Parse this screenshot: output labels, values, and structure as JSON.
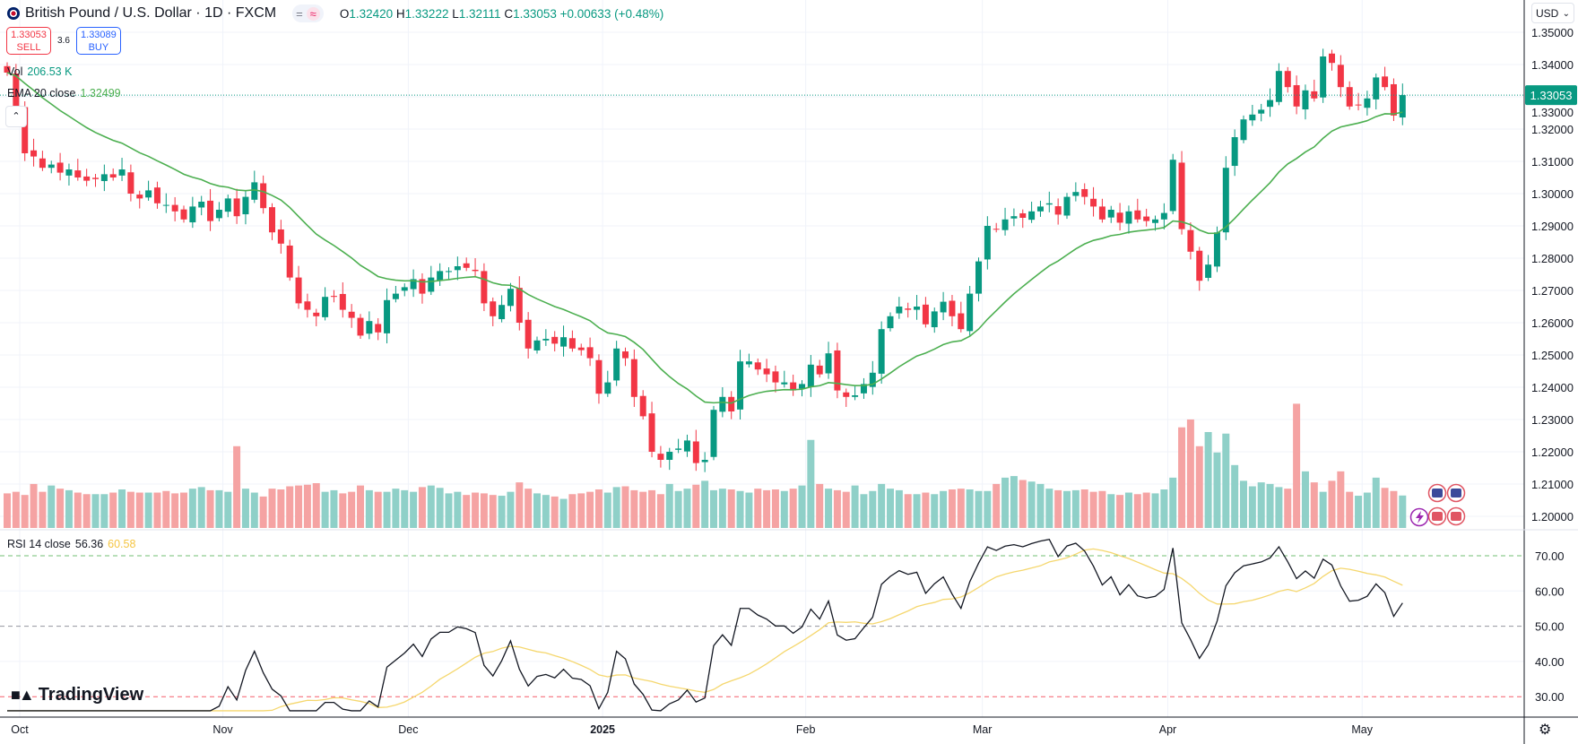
{
  "header": {
    "title": "British Pound / U.S. Dollar · 1D · FXCM",
    "pill_left": "=",
    "pill_right": "≈",
    "ohlc": {
      "o_label": "O",
      "o": "1.32420",
      "h_label": "H",
      "h": "1.33222",
      "l_label": "L",
      "l": "1.32111",
      "c_label": "C",
      "c": "1.33053",
      "change": "+0.00633 (+0.48%)"
    }
  },
  "trade": {
    "sell_price": "1.33053",
    "sell_label": "SELL",
    "spread": "3.6",
    "buy_price": "1.33089",
    "buy_label": "BUY"
  },
  "legend": {
    "vol_label": "Vol",
    "vol_value": "206.53 K",
    "ema_label": "EMA 20 close",
    "ema_value": "1.32499",
    "rsi_label": "RSI 14 close",
    "rsi_value": "56.36",
    "rsi_ma_value": "60.58"
  },
  "currency_selector": "USD",
  "current_price_tag": "1.33053",
  "brand": "TradingView",
  "colors": {
    "up": "#089981",
    "down": "#f23645",
    "ema": "#4caf50",
    "rsi": "#131722",
    "rsi_ma": "#f5d76e",
    "vol_up": "#8fd0c8",
    "vol_down": "#f5a3a3"
  },
  "chart_data": {
    "type": "candlestick",
    "title": "British Pound / U.S. Dollar · 1D · FXCM",
    "ylim": [
      1.195,
      1.355
    ],
    "y_ticks": [
      "1.35000",
      "1.34000",
      "1.33000",
      "1.32000",
      "1.31000",
      "1.30000",
      "1.29000",
      "1.28000",
      "1.27000",
      "1.26000",
      "1.25000",
      "1.24000",
      "1.23000",
      "1.22000",
      "1.21000",
      "1.20000"
    ],
    "rsi_ticks": [
      "70.00",
      "60.00",
      "50.00",
      "40.00",
      "30.00"
    ],
    "rsi_bands": [
      70,
      50,
      30
    ],
    "x_labels": [
      {
        "label": "Oct",
        "index": 0
      },
      {
        "label": "Nov",
        "index": 23
      },
      {
        "label": "Dec",
        "index": 44
      },
      {
        "label": "2025",
        "index": 66
      },
      {
        "label": "Feb",
        "index": 89
      },
      {
        "label": "Mar",
        "index": 109
      },
      {
        "label": "Apr",
        "index": 130
      },
      {
        "label": "May",
        "index": 152
      }
    ],
    "close": [
      1.3375,
      1.3265,
      1.3125,
      1.3115,
      1.308,
      1.309,
      1.3065,
      1.3075,
      1.305,
      1.304,
      1.3045,
      1.306,
      1.305,
      1.3075,
      1.3,
      1.2985,
      1.301,
      1.297,
      1.2965,
      1.2945,
      1.292,
      1.296,
      1.2975,
      1.2915,
      1.295,
      1.2985,
      1.293,
      1.299,
      1.3035,
      1.2955,
      1.288,
      1.2845,
      1.274,
      1.266,
      1.264,
      1.262,
      1.268,
      1.268,
      1.264,
      1.2615,
      1.256,
      1.2605,
      1.257,
      1.267,
      1.269,
      1.271,
      1.2735,
      1.269,
      1.274,
      1.276,
      1.276,
      1.2775,
      1.277,
      1.276,
      1.266,
      1.262,
      1.2655,
      1.2705,
      1.26,
      1.252,
      1.2545,
      1.255,
      1.2535,
      1.2555,
      1.252,
      1.2515,
      1.249,
      1.238,
      1.2415,
      1.252,
      1.249,
      1.237,
      1.231,
      1.22,
      1.2175,
      1.22,
      1.221,
      1.2235,
      1.2165,
      1.2175,
      1.233,
      1.237,
      1.2325,
      1.248,
      1.248,
      1.2455,
      1.244,
      1.2415,
      1.2415,
      1.239,
      1.241,
      1.247,
      1.244,
      1.2505,
      1.239,
      1.237,
      1.2375,
      1.241,
      1.2445,
      1.258,
      1.262,
      1.265,
      1.264,
      1.265,
      1.2595,
      1.2635,
      1.2665,
      1.262,
      1.258,
      1.269,
      1.279,
      1.29,
      1.289,
      1.292,
      1.293,
      1.2925,
      1.2945,
      1.296,
      1.297,
      1.2935,
      1.299,
      1.3005,
      1.299,
      1.296,
      1.292,
      1.295,
      1.291,
      1.2945,
      1.292,
      1.2915,
      1.292,
      1.294,
      1.3105,
      1.289,
      1.282,
      1.273,
      1.278,
      1.288,
      1.308,
      1.3175,
      1.323,
      1.3245,
      1.326,
      1.329,
      1.338,
      1.333,
      1.327,
      1.332,
      1.3295,
      1.3425,
      1.3405,
      1.333,
      1.327,
      1.3275,
      1.3295,
      1.336,
      1.333,
      1.3242,
      1.33053
    ],
    "volume_k": [
      220,
      230,
      210,
      280,
      230,
      270,
      250,
      240,
      225,
      215,
      215,
      215,
      225,
      245,
      230,
      225,
      225,
      225,
      235,
      220,
      225,
      250,
      260,
      240,
      240,
      230,
      520,
      250,
      225,
      200,
      250,
      245,
      265,
      270,
      275,
      285,
      230,
      240,
      220,
      230,
      270,
      240,
      230,
      230,
      250,
      240,
      230,
      260,
      270,
      255,
      220,
      230,
      210,
      225,
      220,
      210,
      205,
      230,
      290,
      250,
      220,
      210,
      200,
      185,
      215,
      220,
      230,
      245,
      225,
      260,
      265,
      240,
      230,
      240,
      215,
      280,
      235,
      250,
      275,
      300,
      240,
      250,
      245,
      235,
      225,
      250,
      240,
      245,
      235,
      250,
      270,
      560,
      280,
      250,
      240,
      230,
      270,
      215,
      235,
      280,
      250,
      240,
      215,
      215,
      225,
      215,
      235,
      245,
      250,
      245,
      235,
      235,
      280,
      320,
      330,
      305,
      295,
      280,
      250,
      240,
      235,
      240,
      245,
      230,
      235,
      215,
      210,
      225,
      215,
      225,
      220,
      245,
      320,
      640,
      690,
      520,
      610,
      480,
      600,
      400,
      300,
      265,
      290,
      280,
      260,
      250,
      790,
      360,
      290,
      230,
      300,
      360,
      230,
      205,
      225,
      320,
      255,
      235,
      206.53
    ],
    "indicators": {
      "ema_period": 20,
      "rsi_period": 14,
      "rsi_ma_period": 14
    }
  }
}
